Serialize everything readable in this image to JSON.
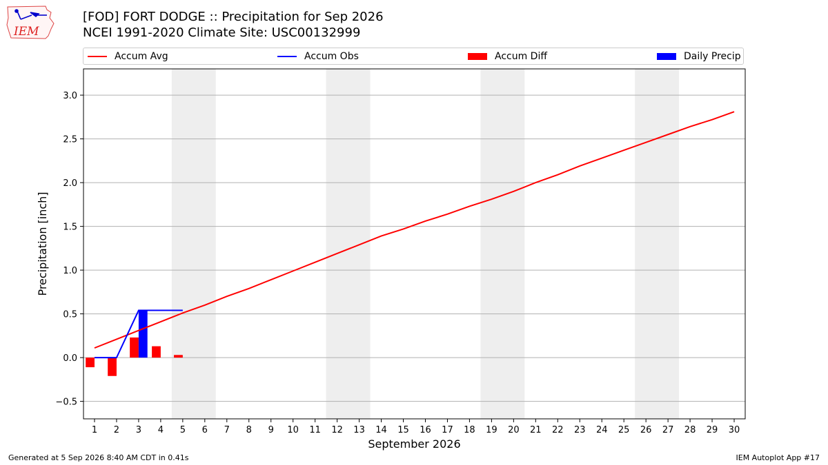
{
  "header": {
    "title_line1": "[FOD] FORT DODGE :: Precipitation for Sep 2026",
    "title_line2": "NCEI 1991-2020 Climate Site: USC00132999"
  },
  "logo": {
    "text": "IEM",
    "icon": "iem-iowa-logo-icon"
  },
  "legend": [
    {
      "label": "Accum Avg",
      "kind": "line",
      "color": "#ff0000"
    },
    {
      "label": "Accum Obs",
      "kind": "line",
      "color": "#0000ff"
    },
    {
      "label": "Accum Diff",
      "kind": "box",
      "color": "#ff0000"
    },
    {
      "label": "Daily Precip",
      "kind": "box",
      "color": "#0000ff"
    }
  ],
  "footer": {
    "left": "Generated at 5 Sep 2026 8:40 AM CDT in 0.41s",
    "right": "IEM Autoplot App #17"
  },
  "chart_data": {
    "type": "line",
    "xlabel": "September 2026",
    "ylabel": "Precipitation [inch]",
    "xlim": [
      0.5,
      30.5
    ],
    "ylim": [
      -0.7,
      3.3
    ],
    "x_ticks": [
      1,
      2,
      3,
      4,
      5,
      6,
      7,
      8,
      9,
      10,
      11,
      12,
      13,
      14,
      15,
      16,
      17,
      18,
      19,
      20,
      21,
      22,
      23,
      24,
      25,
      26,
      27,
      28,
      29,
      30
    ],
    "y_ticks": [
      -0.5,
      0.0,
      0.5,
      1.0,
      1.5,
      2.0,
      2.5,
      3.0
    ],
    "y_tick_labels": [
      "−0.5",
      "0.0",
      "0.5",
      "1.0",
      "1.5",
      "2.0",
      "2.5",
      "3.0"
    ],
    "grid": "horizontal",
    "weekend_shading": [
      [
        4.5,
        6.5
      ],
      [
        11.5,
        13.5
      ],
      [
        18.5,
        20.5
      ],
      [
        25.5,
        27.5
      ]
    ],
    "series": [
      {
        "name": "Accum Avg",
        "type": "line",
        "color": "#ff0000",
        "x": [
          1,
          2,
          3,
          4,
          5,
          6,
          7,
          8,
          9,
          10,
          11,
          12,
          13,
          14,
          15,
          16,
          17,
          18,
          19,
          20,
          21,
          22,
          23,
          24,
          25,
          26,
          27,
          28,
          29,
          30
        ],
        "values": [
          0.11,
          0.21,
          0.31,
          0.41,
          0.51,
          0.6,
          0.7,
          0.79,
          0.89,
          0.99,
          1.09,
          1.19,
          1.29,
          1.39,
          1.47,
          1.56,
          1.64,
          1.73,
          1.81,
          1.9,
          2.0,
          2.09,
          2.19,
          2.28,
          2.37,
          2.46,
          2.55,
          2.64,
          2.72,
          2.81
        ]
      },
      {
        "name": "Accum Obs",
        "type": "step",
        "color": "#0000ff",
        "x": [
          1,
          2,
          3,
          4,
          5
        ],
        "values": [
          0.0,
          0.0,
          0.54,
          0.54,
          0.54
        ]
      },
      {
        "name": "Accum Diff",
        "type": "bar",
        "color": "#ff0000",
        "x": [
          1,
          2,
          3,
          4,
          5
        ],
        "values": [
          -0.11,
          -0.21,
          0.23,
          0.13,
          0.03
        ]
      },
      {
        "name": "Daily Precip",
        "type": "bar",
        "color": "#0000ff",
        "x": [
          1,
          2,
          3,
          4,
          5
        ],
        "values": [
          0.0,
          0.0,
          0.54,
          0.0,
          0.0
        ]
      }
    ]
  }
}
